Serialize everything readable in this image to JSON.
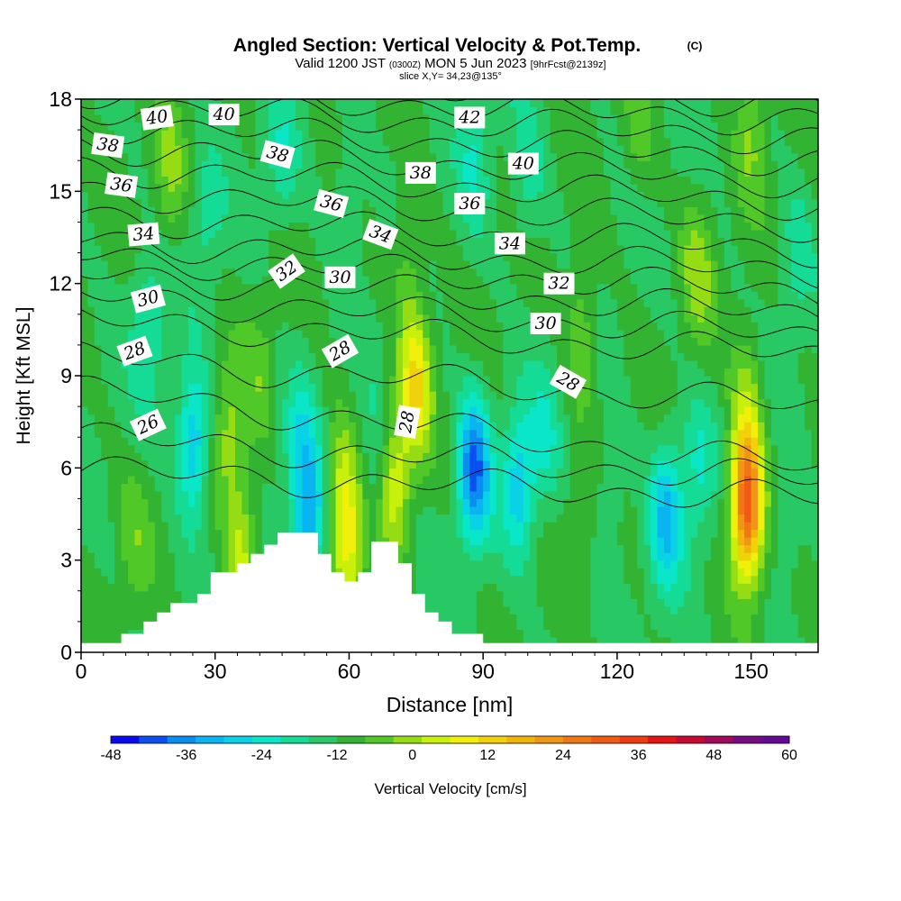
{
  "header": {
    "title": "Angled Section: Vertical Velocity & Pot.Temp.",
    "title_unit": "(C)",
    "valid_prefix": "Valid 1200 JST",
    "valid_utc": "(0300Z)",
    "valid_date": "MON 5 Jun 2023",
    "forecast": "[9hrFcst@2139z]",
    "slice": "slice X,Y= 34,23@135°"
  },
  "chart_data": {
    "type": "heatmap",
    "title": "Angled Section: Vertical Velocity & Pot.Temp.",
    "xlabel": "Distance [nm]",
    "ylabel": "Height [Kft MSL]",
    "xlim": [
      0,
      165
    ],
    "ylim": [
      0,
      18
    ],
    "xticks": [
      "0",
      "30",
      "60",
      "90",
      "120",
      "150"
    ],
    "yticks": [
      "0",
      "3",
      "6",
      "9",
      "12",
      "15",
      "18"
    ],
    "colorbar": {
      "label": "Vertical Velocity [cm/s]",
      "min": -48,
      "max": 60,
      "step": 6,
      "tick_labels": [
        "-48",
        "-36",
        "-24",
        "-12",
        "0",
        "12",
        "24",
        "36",
        "48",
        "60"
      ],
      "colors": [
        "#0a0af0",
        "#0a50f0",
        "#0a8cf0",
        "#0ab4f0",
        "#0ad2e6",
        "#0ae6c8",
        "#14dc96",
        "#28c864",
        "#32b432",
        "#50c828",
        "#96dc14",
        "#c8f00a",
        "#f0f00a",
        "#f0d20a",
        "#f0b40a",
        "#f09614",
        "#f07814",
        "#f05a14",
        "#f03c14",
        "#e61414",
        "#c80a32",
        "#a00a5a",
        "#780a82",
        "#640a96"
      ]
    },
    "velocity_cells": [
      {
        "x": 25,
        "h": 6.8,
        "v": -26
      },
      {
        "x": 15,
        "h": 10.5,
        "v": -12
      },
      {
        "x": 12,
        "h": 3.5,
        "v": 8
      },
      {
        "x": 33,
        "h": 7.0,
        "v": 14
      },
      {
        "x": 36,
        "h": 3.2,
        "v": 20
      },
      {
        "x": 40,
        "h": 9.0,
        "v": 8
      },
      {
        "x": 49,
        "h": 7.0,
        "v": -12
      },
      {
        "x": 51,
        "h": 4.3,
        "v": -28
      },
      {
        "x": 58,
        "h": 5.5,
        "v": 16
      },
      {
        "x": 60,
        "h": 3.4,
        "v": 22
      },
      {
        "x": 66,
        "h": 6.0,
        "v": -10
      },
      {
        "x": 70,
        "h": 5.5,
        "v": 22
      },
      {
        "x": 75,
        "h": 8.8,
        "v": 28
      },
      {
        "x": 73,
        "h": 12.5,
        "v": 10
      },
      {
        "x": 88,
        "h": 6.0,
        "v": -36
      },
      {
        "x": 98,
        "h": 5.5,
        "v": -22
      },
      {
        "x": 104,
        "h": 7.0,
        "v": -10
      },
      {
        "x": 112,
        "h": 4.5,
        "v": 6
      },
      {
        "x": 118,
        "h": 5.0,
        "v": -8
      },
      {
        "x": 131,
        "h": 4.5,
        "v": -24
      },
      {
        "x": 138,
        "h": 6.0,
        "v": -12
      },
      {
        "x": 149,
        "h": 4.8,
        "v": 58
      },
      {
        "x": 149,
        "h": 8.0,
        "v": 14
      },
      {
        "x": 158,
        "h": 4.0,
        "v": -8
      },
      {
        "x": 112,
        "h": 10.5,
        "v": 12
      },
      {
        "x": 138,
        "h": 12.5,
        "v": 14
      },
      {
        "x": 20,
        "h": 15.5,
        "v": 12
      },
      {
        "x": 28,
        "h": 14.0,
        "v": -8
      },
      {
        "x": 45,
        "h": 16.0,
        "v": -10
      },
      {
        "x": 60,
        "h": 15.0,
        "v": -8
      },
      {
        "x": 88,
        "h": 16.0,
        "v": -10
      },
      {
        "x": 100,
        "h": 15.5,
        "v": -10
      },
      {
        "x": 125,
        "h": 17.0,
        "v": 8
      },
      {
        "x": 150,
        "h": 17.0,
        "v": 12
      },
      {
        "x": 160,
        "h": 13.0,
        "v": -8
      }
    ],
    "terrain": [
      [
        0,
        0.3
      ],
      [
        9,
        0.3
      ],
      [
        9,
        0.6
      ],
      [
        14,
        0.6
      ],
      [
        14,
        1.0
      ],
      [
        17,
        1.0
      ],
      [
        17,
        1.3
      ],
      [
        20,
        1.3
      ],
      [
        20,
        1.6
      ],
      [
        26,
        1.6
      ],
      [
        26,
        1.9
      ],
      [
        29,
        1.9
      ],
      [
        29,
        2.6
      ],
      [
        35,
        2.6
      ],
      [
        35,
        2.9
      ],
      [
        38,
        2.9
      ],
      [
        38,
        3.2
      ],
      [
        41,
        3.2
      ],
      [
        41,
        3.5
      ],
      [
        44,
        3.5
      ],
      [
        44,
        3.9
      ],
      [
        53,
        3.9
      ],
      [
        53,
        3.2
      ],
      [
        56,
        3.2
      ],
      [
        56,
        2.6
      ],
      [
        59,
        2.6
      ],
      [
        59,
        2.3
      ],
      [
        62,
        2.3
      ],
      [
        62,
        2.6
      ],
      [
        65,
        2.6
      ],
      [
        65,
        3.6
      ],
      [
        71,
        3.6
      ],
      [
        71,
        2.9
      ],
      [
        74,
        2.9
      ],
      [
        74,
        1.9
      ],
      [
        77,
        1.9
      ],
      [
        77,
        1.3
      ],
      [
        80,
        1.3
      ],
      [
        80,
        1.0
      ],
      [
        83,
        1.0
      ],
      [
        83,
        0.6
      ],
      [
        90,
        0.6
      ],
      [
        90,
        0.3
      ],
      [
        165,
        0.3
      ]
    ],
    "pot_temp_isentropes": [
      {
        "theta": 26,
        "start": 5.9,
        "end": 5.0
      },
      {
        "theta": 27,
        "start": 7.0,
        "end": 5.6
      },
      {
        "theta": 28,
        "start": 8.5,
        "end": 6.0
      },
      {
        "theta": 29,
        "start": 9.6,
        "end": 8.0
      },
      {
        "theta": 30,
        "start": 10.8,
        "end": 9.7
      },
      {
        "theta": 31,
        "start": 11.6,
        "end": 10.3
      },
      {
        "theta": 32,
        "start": 12.3,
        "end": 11.0
      },
      {
        "theta": 33,
        "start": 12.9,
        "end": 11.7
      },
      {
        "theta": 34,
        "start": 13.4,
        "end": 12.4
      },
      {
        "theta": 35,
        "start": 14.2,
        "end": 13.1
      },
      {
        "theta": 36,
        "start": 15.0,
        "end": 13.9
      },
      {
        "theta": 37,
        "start": 15.8,
        "end": 14.6
      },
      {
        "theta": 38,
        "start": 16.5,
        "end": 15.3
      },
      {
        "theta": 39,
        "start": 17.2,
        "end": 16.0
      },
      {
        "theta": 40,
        "start": 17.8,
        "end": 16.7
      },
      {
        "theta": 41,
        "start": 18.3,
        "end": 17.3
      },
      {
        "theta": 42,
        "start": 18.8,
        "end": 17.9
      }
    ],
    "contour_labels": [
      {
        "text": "40",
        "x": 17,
        "h": 17.4,
        "angle": -8
      },
      {
        "text": "40",
        "x": 32,
        "h": 17.5,
        "angle": 0
      },
      {
        "text": "38",
        "x": 6,
        "h": 16.5,
        "angle": 8
      },
      {
        "text": "38",
        "x": 44,
        "h": 16.2,
        "angle": 15
      },
      {
        "text": "42",
        "x": 87,
        "h": 17.4,
        "angle": 0
      },
      {
        "text": "40",
        "x": 99,
        "h": 15.9,
        "angle": 0
      },
      {
        "text": "38",
        "x": 76,
        "h": 15.6,
        "angle": 0
      },
      {
        "text": "36",
        "x": 9,
        "h": 15.2,
        "angle": 8
      },
      {
        "text": "36",
        "x": 56,
        "h": 14.6,
        "angle": 15
      },
      {
        "text": "36",
        "x": 87,
        "h": 14.6,
        "angle": 0
      },
      {
        "text": "34",
        "x": 14,
        "h": 13.6,
        "angle": -5
      },
      {
        "text": "34",
        "x": 67,
        "h": 13.6,
        "angle": 20
      },
      {
        "text": "34",
        "x": 96,
        "h": 13.3,
        "angle": 0
      },
      {
        "text": "32",
        "x": 46,
        "h": 12.4,
        "angle": -35
      },
      {
        "text": "32",
        "x": 107,
        "h": 12.0,
        "angle": 0
      },
      {
        "text": "30",
        "x": 15,
        "h": 11.5,
        "angle": -15
      },
      {
        "text": "30",
        "x": 58,
        "h": 12.2,
        "angle": 0
      },
      {
        "text": "30",
        "x": 104,
        "h": 10.7,
        "angle": 0
      },
      {
        "text": "28",
        "x": 12,
        "h": 9.8,
        "angle": -20
      },
      {
        "text": "28",
        "x": 58,
        "h": 9.8,
        "angle": -30
      },
      {
        "text": "28",
        "x": 73,
        "h": 7.5,
        "angle": -80
      },
      {
        "text": "28",
        "x": 109,
        "h": 8.8,
        "angle": 30
      },
      {
        "text": "26",
        "x": 15,
        "h": 7.4,
        "angle": -25
      }
    ]
  }
}
